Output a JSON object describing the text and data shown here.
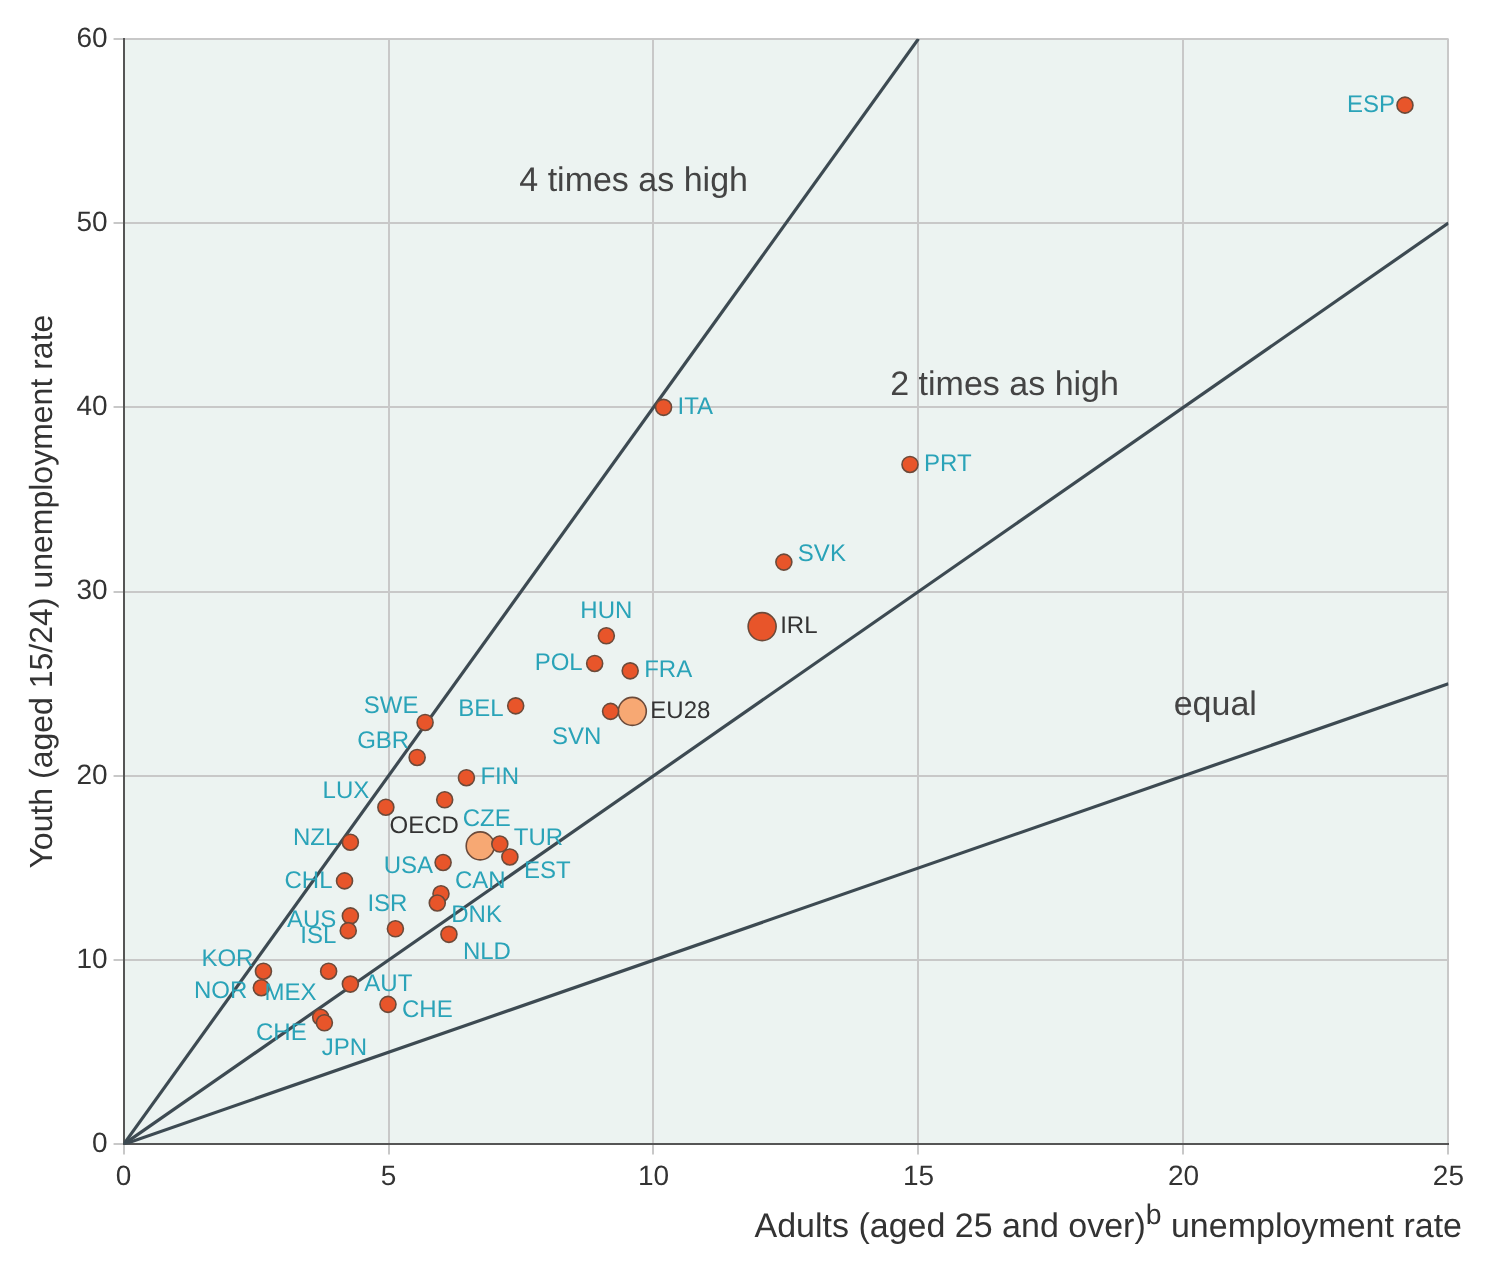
{
  "chart_data": {
    "type": "scatter",
    "xlabel": "Adults (aged 25 and over)$^{b}$ unemployment rate",
    "ylabel": "Youth (aged 15/24) unemployment rate",
    "xlim": [
      0,
      25
    ],
    "xticks": [
      0,
      5,
      10,
      15,
      20,
      25
    ],
    "ylim": [
      0,
      60
    ],
    "yticks": [
      0,
      10,
      20,
      30,
      40,
      50,
      60
    ],
    "grid": true,
    "legend": false,
    "marker": "circle",
    "series": [
      {
        "type": "line",
        "color": "#3d4a52",
        "x": [
          0,
          25
        ],
        "values": [
          0,
          25
        ],
        "marker": "none"
      },
      {
        "type": "line",
        "color": "#3d4a52",
        "x": [
          0,
          25
        ],
        "values": [
          0,
          50
        ],
        "marker": "none"
      },
      {
        "type": "line",
        "color": "#3d4a52",
        "x": [
          0,
          15
        ],
        "values": [
          0,
          60
        ],
        "marker": "none"
      },
      {
        "color": "#e8552a",
        "x": [
          24.18,
          14.84,
          10.19,
          12.46,
          9.11,
          8.89,
          9.56,
          9.19,
          7.4,
          5.69,
          5.54,
          6.47,
          4.95,
          6.06,
          7.1,
          7.29,
          4.28,
          6.03,
          4.17,
          5.99,
          5.92,
          4.28,
          4.24,
          5.13,
          6.14,
          2.64,
          2.6,
          3.87,
          4.28,
          4.99,
          3.72,
          3.79
        ],
        "values": [
          56.4,
          36.9,
          40.0,
          31.6,
          27.6,
          26.1,
          25.7,
          23.5,
          23.8,
          22.9,
          21.0,
          19.9,
          18.3,
          18.7,
          16.3,
          15.6,
          16.4,
          15.3,
          14.3,
          13.6,
          13.1,
          12.4,
          11.6,
          11.7,
          11.4,
          9.4,
          8.5,
          9.4,
          8.7,
          7.6,
          6.9,
          6.6
        ]
      },
      {
        "color": "#e8552a",
        "x": [
          12.05
        ],
        "values": [
          28.1
        ]
      },
      {
        "color": "#f7a873",
        "x": [
          9.6,
          6.73
        ],
        "values": [
          23.5,
          16.2
        ]
      }
    ],
    "annotations": [
      {
        "text": "ESP",
        "x": 24.18,
        "y": 56.4
      },
      {
        "text": "PRT",
        "x": 14.84,
        "y": 36.9
      },
      {
        "text": "ITA",
        "x": 10.19,
        "y": 40.0
      },
      {
        "text": "SVK",
        "x": 12.46,
        "y": 31.6
      },
      {
        "text": "HUN",
        "x": 9.11,
        "y": 27.6
      },
      {
        "text": "POL",
        "x": 8.89,
        "y": 26.1
      },
      {
        "text": "FRA",
        "x": 9.56,
        "y": 25.7
      },
      {
        "text": "SVN",
        "x": 9.19,
        "y": 23.5
      },
      {
        "text": "BEL",
        "x": 7.4,
        "y": 23.8
      },
      {
        "text": "SWE",
        "x": 5.69,
        "y": 22.9
      },
      {
        "text": "GBR",
        "x": 5.54,
        "y": 21.0
      },
      {
        "text": "FIN",
        "x": 6.47,
        "y": 19.9
      },
      {
        "text": "LUX",
        "x": 4.95,
        "y": 18.3
      },
      {
        "text": "CZE",
        "x": 6.06,
        "y": 18.7
      },
      {
        "text": "TUR",
        "x": 7.1,
        "y": 16.3
      },
      {
        "text": "EST",
        "x": 7.29,
        "y": 15.6
      },
      {
        "text": "NZL",
        "x": 4.28,
        "y": 16.4
      },
      {
        "text": "USA",
        "x": 6.03,
        "y": 15.3
      },
      {
        "text": "CHL",
        "x": 4.17,
        "y": 14.3
      },
      {
        "text": "CAN",
        "x": 5.99,
        "y": 13.6
      },
      {
        "text": "DNK",
        "x": 5.92,
        "y": 13.1
      },
      {
        "text": "AUS",
        "x": 4.28,
        "y": 12.4
      },
      {
        "text": "ISL",
        "x": 4.24,
        "y": 11.6
      },
      {
        "text": "ISR",
        "x": 5.13,
        "y": 11.7
      },
      {
        "text": "NLD",
        "x": 6.14,
        "y": 11.4
      },
      {
        "text": "KOR",
        "x": 2.64,
        "y": 9.4
      },
      {
        "text": "NOR",
        "x": 2.6,
        "y": 8.5
      },
      {
        "text": "MEX",
        "x": 3.87,
        "y": 9.4
      },
      {
        "text": "AUT",
        "x": 4.28,
        "y": 8.7
      },
      {
        "text": "CHE",
        "x": 4.99,
        "y": 7.6
      },
      {
        "text": "CHE",
        "x": 3.72,
        "y": 6.9
      },
      {
        "text": "JPN",
        "x": 3.79,
        "y": 6.6
      },
      {
        "text": "IRL",
        "x": 12.05,
        "y": 28.1
      },
      {
        "text": "EU28",
        "x": 9.6,
        "y": 23.5
      },
      {
        "text": "OECD",
        "x": 6.73,
        "y": 16.2
      },
      "4 times as high",
      "2 times as high",
      "equal"
    ]
  }
}
